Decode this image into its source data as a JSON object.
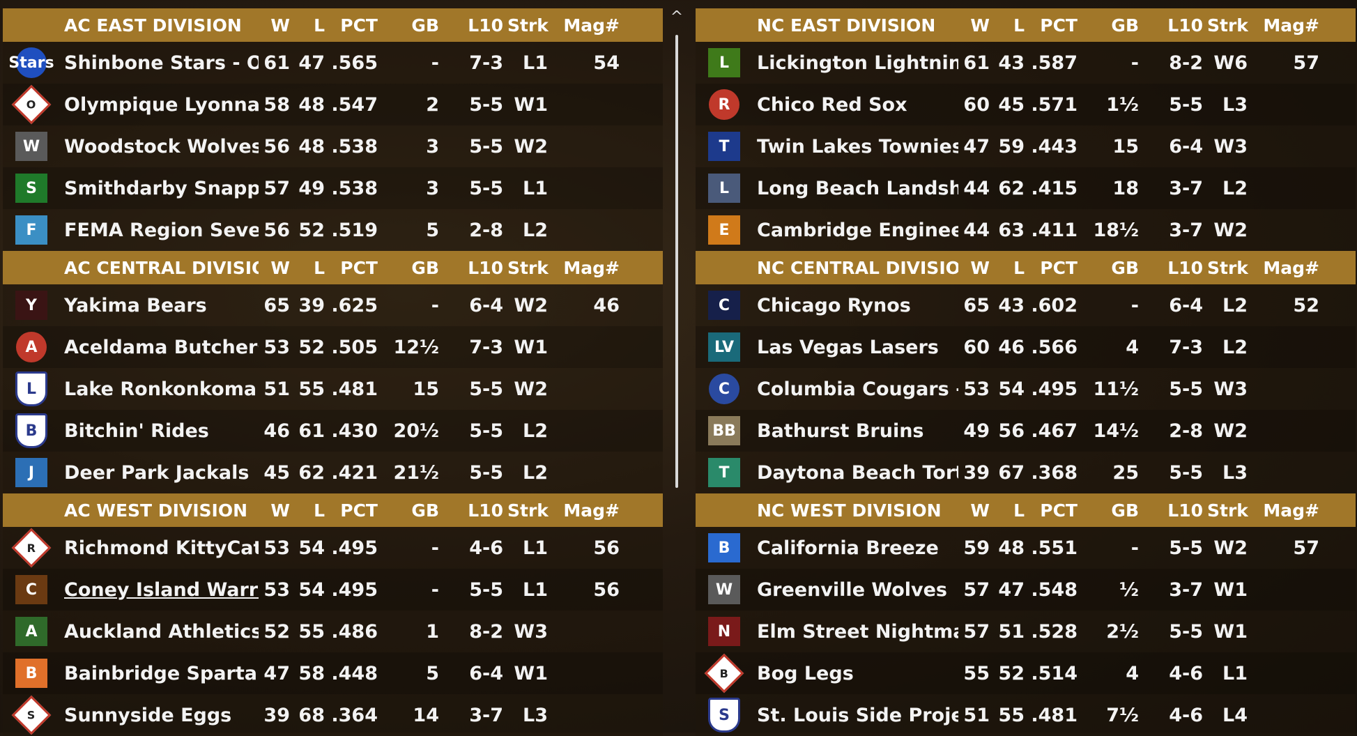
{
  "columns": {
    "w": "W",
    "l": "L",
    "pct": "PCT",
    "gb": "GB",
    "l10": "L10",
    "strk": "Strk",
    "mag": "Mag#"
  },
  "left": [
    {
      "title": "AC EAST DIVISION",
      "teams": [
        {
          "name": "Shinbone Stars - OL",
          "w": "61",
          "l": "47",
          "pct": ".565",
          "gb": "-",
          "l10": "7-3",
          "strk": "L1",
          "mag": "54",
          "logo": "stars-logo",
          "logo_text": "Stars",
          "logo_color": "#1f4fbf"
        },
        {
          "name": "Olympique Lyonnais",
          "w": "58",
          "l": "48",
          "pct": ".547",
          "gb": "2",
          "l10": "5-5",
          "strk": "W1",
          "mag": "",
          "logo": "ol-diamond-logo",
          "logo_text": "O"
        },
        {
          "name": "Woodstock Wolves",
          "w": "56",
          "l": "48",
          "pct": ".538",
          "gb": "3",
          "l10": "5-5",
          "strk": "W2",
          "mag": "",
          "logo": "wolves-logo",
          "logo_text": "W",
          "logo_color": "#5a5a5a"
        },
        {
          "name": "Smithdarby Snappers",
          "w": "57",
          "l": "49",
          "pct": ".538",
          "gb": "3",
          "l10": "5-5",
          "strk": "L1",
          "mag": "",
          "logo": "turtle-logo",
          "logo_text": "S",
          "logo_color": "#1f7a2a"
        },
        {
          "name": "FEMA Region Seven",
          "w": "56",
          "l": "52",
          "pct": ".519",
          "gb": "5",
          "l10": "2-8",
          "strk": "L2",
          "mag": "",
          "logo": "fema-logo",
          "logo_text": "F",
          "logo_color": "#3b8fc4"
        }
      ]
    },
    {
      "title": "AC CENTRAL DIVISION",
      "teams": [
        {
          "name": "Yakima Bears",
          "w": "65",
          "l": "39",
          "pct": ".625",
          "gb": "-",
          "l10": "6-4",
          "strk": "W2",
          "mag": "46",
          "logo": "bear-logo",
          "logo_text": "Y",
          "logo_color": "#3a1414"
        },
        {
          "name": "Aceldama Butchers-OI",
          "w": "53",
          "l": "52",
          "pct": ".505",
          "gb": "12½",
          "l10": "7-3",
          "strk": "W1",
          "mag": "",
          "logo": "butcher-logo",
          "logo_text": "A",
          "logo_color": "#c0392b"
        },
        {
          "name": "Lake Ronkonkoma Moi",
          "w": "51",
          "l": "55",
          "pct": ".481",
          "gb": "15",
          "l10": "5-5",
          "strk": "W2",
          "mag": "",
          "logo": "l-shield-logo",
          "logo_text": "L"
        },
        {
          "name": "Bitchin' Rides",
          "w": "46",
          "l": "61",
          "pct": ".430",
          "gb": "20½",
          "l10": "5-5",
          "strk": "L2",
          "mag": "",
          "logo": "b-shield-logo",
          "logo_text": "B",
          "logo_color": "#1d2a5c"
        },
        {
          "name": "Deer Park Jackals",
          "w": "45",
          "l": "62",
          "pct": ".421",
          "gb": "21½",
          "l10": "5-5",
          "strk": "L2",
          "mag": "",
          "logo": "jackal-logo",
          "logo_text": "J",
          "logo_color": "#2c6fb5"
        }
      ]
    },
    {
      "title": "AC WEST DIVISION",
      "teams": [
        {
          "name": "Richmond KittyCats",
          "w": "53",
          "l": "54",
          "pct": ".495",
          "gb": "-",
          "l10": "4-6",
          "strk": "L1",
          "mag": "56",
          "logo": "r-diamond-logo",
          "logo_text": "R"
        },
        {
          "name": "Coney Island Warriors-",
          "w": "53",
          "l": "54",
          "pct": ".495",
          "gb": "-",
          "l10": "5-5",
          "strk": "L1",
          "mag": "56",
          "logo": "warriors-logo",
          "logo_text": "C",
          "logo_color": "#6b3a12",
          "linked": true
        },
        {
          "name": "Auckland Athletics -OI",
          "w": "52",
          "l": "55",
          "pct": ".486",
          "gb": "1",
          "l10": "8-2",
          "strk": "W3",
          "mag": "",
          "logo": "athletics-logo",
          "logo_text": "A",
          "logo_color": "#2f6a2a"
        },
        {
          "name": "Bainbridge Spartans",
          "w": "47",
          "l": "58",
          "pct": ".448",
          "gb": "5",
          "l10": "6-4",
          "strk": "W1",
          "mag": "",
          "logo": "b-orange-logo",
          "logo_text": "B",
          "logo_color": "#e0702a"
        },
        {
          "name": "Sunnyside Eggs",
          "w": "39",
          "l": "68",
          "pct": ".364",
          "gb": "14",
          "l10": "3-7",
          "strk": "L3",
          "mag": "",
          "logo": "s-diamond-logo",
          "logo_text": "S"
        }
      ]
    }
  ],
  "right": [
    {
      "title": "NC EAST DIVISION",
      "teams": [
        {
          "name": "Lickington Lightning",
          "w": "61",
          "l": "43",
          "pct": ".587",
          "gb": "-",
          "l10": "8-2",
          "strk": "W6",
          "mag": "57",
          "logo": "lightning-logo",
          "logo_text": "L",
          "logo_color": "#3f7a1a"
        },
        {
          "name": "Chico Red Sox",
          "w": "60",
          "l": "45",
          "pct": ".571",
          "gb": "1½",
          "l10": "5-5",
          "strk": "L3",
          "mag": "",
          "logo": "redsox-logo",
          "logo_text": "R",
          "logo_color": "#c0392b"
        },
        {
          "name": "Twin Lakes Townies",
          "w": "47",
          "l": "59",
          "pct": ".443",
          "gb": "15",
          "l10": "6-4",
          "strk": "W3",
          "mag": "",
          "logo": "t-logo",
          "logo_text": "T",
          "logo_color": "#1d3a8c"
        },
        {
          "name": "Long Beach Landshark",
          "w": "44",
          "l": "62",
          "pct": ".415",
          "gb": "18",
          "l10": "3-7",
          "strk": "L2",
          "mag": "",
          "logo": "landshark-logo",
          "logo_text": "L",
          "logo_color": "#4a5a7a"
        },
        {
          "name": "Cambridge Engineers",
          "w": "44",
          "l": "63",
          "pct": ".411",
          "gb": "18½",
          "l10": "3-7",
          "strk": "W2",
          "mag": "",
          "logo": "engineers-logo",
          "logo_text": "E",
          "logo_color": "#d07a1a"
        }
      ]
    },
    {
      "title": "NC CENTRAL DIVISION",
      "teams": [
        {
          "name": "Chicago Rynos",
          "w": "65",
          "l": "43",
          "pct": ".602",
          "gb": "-",
          "l10": "6-4",
          "strk": "L2",
          "mag": "52",
          "logo": "c-logo",
          "logo_text": "C",
          "logo_color": "#16204a"
        },
        {
          "name": "Las Vegas Lasers",
          "w": "60",
          "l": "46",
          "pct": ".566",
          "gb": "4",
          "l10": "7-3",
          "strk": "L2",
          "mag": "",
          "logo": "lv-logo",
          "logo_text": "LV",
          "logo_color": "#1a6a7a"
        },
        {
          "name": "Columbia Cougars - OL",
          "w": "53",
          "l": "54",
          "pct": ".495",
          "gb": "11½",
          "l10": "5-5",
          "strk": "W3",
          "mag": "",
          "logo": "cougars-logo",
          "logo_text": "C",
          "logo_color": "#2a4aa0"
        },
        {
          "name": "Bathurst Bruins",
          "w": "49",
          "l": "56",
          "pct": ".467",
          "gb": "14½",
          "l10": "2-8",
          "strk": "W2",
          "mag": "",
          "logo": "bb-logo",
          "logo_text": "BB",
          "logo_color": "#8a7a5a"
        },
        {
          "name": "Daytona Beach Tortuga",
          "w": "39",
          "l": "67",
          "pct": ".368",
          "gb": "25",
          "l10": "5-5",
          "strk": "L3",
          "mag": "",
          "logo": "tortuga-logo",
          "logo_text": "T",
          "logo_color": "#2a8a6a"
        }
      ]
    },
    {
      "title": "NC WEST DIVISION",
      "teams": [
        {
          "name": "California Breeze",
          "w": "59",
          "l": "48",
          "pct": ".551",
          "gb": "-",
          "l10": "5-5",
          "strk": "W2",
          "mag": "57",
          "logo": "breeze-logo",
          "logo_text": "B",
          "logo_color": "#2a6ad0"
        },
        {
          "name": "Greenville Wolves",
          "w": "57",
          "l": "47",
          "pct": ".548",
          "gb": "½",
          "l10": "3-7",
          "strk": "W1",
          "mag": "",
          "logo": "wolves2-logo",
          "logo_text": "W",
          "logo_color": "#5a5a5a"
        },
        {
          "name": "Elm Street Nightmares",
          "w": "57",
          "l": "51",
          "pct": ".528",
          "gb": "2½",
          "l10": "5-5",
          "strk": "W1",
          "mag": "",
          "logo": "nightmares-logo",
          "logo_text": "N",
          "logo_color": "#7a1a1a"
        },
        {
          "name": "Bog Legs",
          "w": "55",
          "l": "52",
          "pct": ".514",
          "gb": "4",
          "l10": "4-6",
          "strk": "L1",
          "mag": "",
          "logo": "bog-diamond-logo",
          "logo_text": "B"
        },
        {
          "name": "St. Louis Side Projects",
          "w": "51",
          "l": "55",
          "pct": ".481",
          "gb": "7½",
          "l10": "4-6",
          "strk": "L4",
          "mag": "",
          "logo": "s-shield-logo",
          "logo_text": "S"
        }
      ]
    }
  ],
  "scroll": {
    "arrow": "^"
  }
}
